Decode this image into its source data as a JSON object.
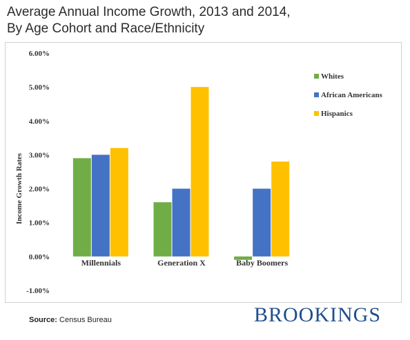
{
  "header": {
    "title_line1": "Average Annual Income Growth, 2013 and 2014,",
    "title_line2": "By Age Cohort and Race/Ethnicity"
  },
  "footer": {
    "source_label": "Source:",
    "source_text": "Census Bureau",
    "brand": "BROOKINGS"
  },
  "chart_data": {
    "type": "bar",
    "title": "Average Annual Income Growth, 2013 and 2014, By Age Cohort and Race/Ethnicity",
    "xlabel": "",
    "ylabel": "Income  Growth  Rates",
    "categories": [
      "Millennials",
      "Generation X",
      "Baby Boomers"
    ],
    "series": [
      {
        "name": "Whites",
        "color": "#70ad47",
        "values": [
          2.9,
          1.6,
          -0.1
        ]
      },
      {
        "name": "African Americans",
        "color": "#4472c4",
        "values": [
          3.0,
          2.0,
          2.0
        ]
      },
      {
        "name": "Hispanics",
        "color": "#ffc000",
        "values": [
          3.2,
          5.0,
          2.8
        ]
      }
    ],
    "ylim": [
      -1,
      6
    ],
    "yticks": [
      6,
      5,
      4,
      3,
      2,
      1,
      0,
      -1
    ],
    "ytick_labels": [
      "6.00%",
      "5.00%",
      "4.00%",
      "3.00%",
      "2.00%",
      "1.00%",
      "0.00%",
      "-1.00%"
    ],
    "grid": false,
    "legend_position": "right"
  }
}
